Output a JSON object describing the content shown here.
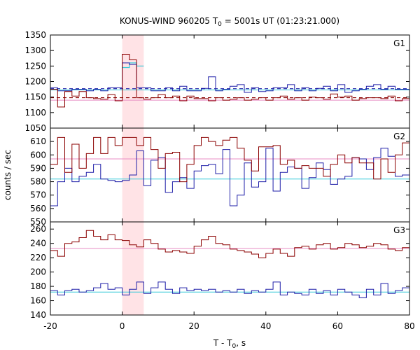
{
  "chart_data": {
    "type": "line",
    "title_main": "KONUS-WIND 960205 T",
    "title_sub": "0",
    "title_rest": " = 5001s UT (01:23:21.000)",
    "xlabel_main": "T - T",
    "xlabel_sub": "0",
    "xlabel_rest": ", s",
    "ylabel": "counts / sec",
    "xlim": [
      -20,
      80
    ],
    "x_ticks": [
      "-20",
      "0",
      "20",
      "40",
      "60",
      "80"
    ],
    "shaded_interval": [
      0,
      6
    ],
    "colors": {
      "red": "#8b0000",
      "blue": "#1f1fa8",
      "pink": "#e88ec4",
      "cyan": "#36c9d8",
      "shade": "#ffe3e6"
    },
    "panels": [
      {
        "label": "G1",
        "ylim": [
          1050,
          1350
        ],
        "y_ticks": [
          "1050",
          "1100",
          "1150",
          "1200",
          "1250",
          "1300",
          "1350"
        ],
        "x_start": -20,
        "step": 2,
        "red_series": [
          1175,
          1118,
          1168,
          1153,
          1168,
          1148,
          1145,
          1143,
          1158,
          1138,
          1288,
          1270,
          1148,
          1143,
          1148,
          1158,
          1148,
          1153,
          1138,
          1153,
          1145,
          1145,
          1138,
          1148,
          1140,
          1143,
          1148,
          1140,
          1143,
          1148,
          1140,
          1148,
          1153,
          1143,
          1148,
          1140,
          1150,
          1148,
          1143,
          1160,
          1150,
          1153,
          1140,
          1145,
          1148,
          1148,
          1145,
          1153,
          1138,
          1145
        ],
        "blue_series": [
          1180,
          1170,
          1170,
          1175,
          1175,
          1170,
          1175,
          1170,
          1180,
          1180,
          1260,
          1255,
          1180,
          1180,
          1170,
          1170,
          1180,
          1170,
          1185,
          1170,
          1170,
          1178,
          1215,
          1170,
          1175,
          1185,
          1190,
          1165,
          1180,
          1168,
          1170,
          1180,
          1180,
          1190,
          1170,
          1180,
          1170,
          1178,
          1185,
          1170,
          1190,
          1165,
          1170,
          1175,
          1185,
          1190,
          1175,
          1185,
          1175,
          1175
        ],
        "red_bg": 1148,
        "blue_bg": 1177,
        "pink_level": 1140,
        "cyan_level": 1173,
        "cyan_burst": [
          1245,
          1260,
          1250
        ]
      },
      {
        "label": "G2",
        "ylim": [
          550,
          620
        ],
        "y_ticks": [
          "550",
          "560",
          "570",
          "580",
          "590",
          "600",
          "610"
        ],
        "x_start": -20,
        "step": 2,
        "red_series": [
          593,
          613,
          587,
          608,
          590,
          601,
          613,
          601,
          613,
          607,
          613,
          613,
          607,
          613,
          604,
          590,
          601,
          602,
          580,
          593,
          607,
          613,
          610,
          607,
          611,
          613,
          605,
          596,
          588,
          606,
          606,
          607,
          593,
          596,
          590,
          592,
          590,
          590,
          584,
          593,
          600,
          594,
          598,
          594,
          594,
          582,
          597,
          587,
          600,
          609
        ],
        "blue_series": [
          562,
          580,
          590,
          580,
          584,
          587,
          593,
          582,
          581,
          580,
          581,
          585,
          603,
          577,
          596,
          598,
          572,
          580,
          583,
          575,
          588,
          592,
          593,
          586,
          604,
          562,
          570,
          594,
          576,
          580,
          605,
          573,
          587,
          591,
          590,
          575,
          583,
          594,
          589,
          578,
          582,
          584,
          598,
          597,
          589,
          598,
          605,
          599,
          584,
          585
        ],
        "pink_level": 597,
        "cyan_level": 582
      },
      {
        "label": "G3",
        "ylim": [
          140,
          270
        ],
        "y_ticks": [
          "140",
          "160",
          "180",
          "200",
          "220",
          "240",
          "260"
        ],
        "x_start": -20,
        "step": 2,
        "red_series": [
          230,
          222,
          240,
          242,
          248,
          258,
          250,
          245,
          252,
          245,
          244,
          238,
          235,
          245,
          240,
          232,
          228,
          230,
          228,
          226,
          236,
          245,
          250,
          240,
          238,
          232,
          230,
          228,
          225,
          220,
          226,
          232,
          226,
          222,
          234,
          236,
          232,
          238,
          240,
          232,
          234,
          240,
          238,
          234,
          236,
          240,
          238,
          232,
          230,
          234
        ],
        "blue_series": [
          174,
          168,
          174,
          176,
          172,
          174,
          178,
          184,
          176,
          178,
          168,
          176,
          186,
          170,
          178,
          186,
          176,
          170,
          178,
          174,
          176,
          174,
          176,
          172,
          174,
          172,
          176,
          170,
          174,
          172,
          176,
          186,
          168,
          172,
          170,
          168,
          176,
          170,
          174,
          168,
          176,
          172,
          168,
          164,
          176,
          168,
          184,
          170,
          174,
          178
        ],
        "pink_level": 233,
        "cyan_level": 172
      }
    ]
  }
}
